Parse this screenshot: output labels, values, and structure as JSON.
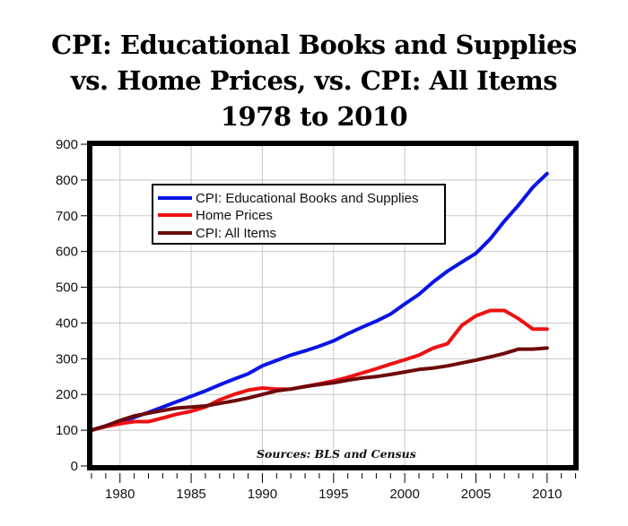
{
  "title": {
    "line1": "CPI: Educational Books and Supplies",
    "line2": "vs. Home Prices, vs. CPI: All Items",
    "line3": "1978 to 2010"
  },
  "source_note": "Sources: BLS and Census",
  "colors": {
    "edu_books": "#0a14e6",
    "home_prices": "#ee1111",
    "cpi_all": "#6e0a0a",
    "grid": "#c8c8c8",
    "frame": "#000000"
  },
  "chart_data": {
    "type": "line",
    "title": "CPI: Educational Books and Supplies vs. Home Prices, vs. CPI: All Items 1978 to 2010",
    "xlabel": "",
    "ylabel": "",
    "xlim": [
      1978,
      2012
    ],
    "ylim": [
      0,
      900
    ],
    "grid": true,
    "legend_position": "upper left (inset)",
    "x_ticks": [
      1980,
      1985,
      1990,
      1995,
      2000,
      2005,
      2010
    ],
    "y_ticks": [
      0,
      100,
      200,
      300,
      400,
      500,
      600,
      700,
      800,
      900
    ],
    "x": [
      1978,
      1979,
      1980,
      1981,
      1982,
      1983,
      1984,
      1985,
      1986,
      1987,
      1988,
      1989,
      1990,
      1991,
      1992,
      1993,
      1994,
      1995,
      1996,
      1997,
      1998,
      1999,
      2000,
      2001,
      2002,
      2003,
      2004,
      2005,
      2006,
      2007,
      2008,
      2009,
      2010
    ],
    "series": [
      {
        "name": "CPI: Educational Books and Supplies",
        "color": "#0a14e6",
        "values": [
          100,
          112,
          124,
          136,
          150,
          165,
          180,
          195,
          210,
          227,
          243,
          258,
          280,
          295,
          310,
          322,
          335,
          350,
          370,
          388,
          405,
          425,
          453,
          480,
          515,
          545,
          570,
          595,
          635,
          685,
          730,
          780,
          818
        ]
      },
      {
        "name": "Home Prices",
        "color": "#ee1111",
        "values": [
          100,
          110,
          118,
          124,
          124,
          134,
          145,
          153,
          165,
          185,
          200,
          212,
          218,
          215,
          215,
          222,
          230,
          238,
          248,
          260,
          272,
          285,
          297,
          310,
          330,
          342,
          393,
          420,
          435,
          435,
          412,
          383,
          383
        ]
      },
      {
        "name": "CPI: All Items",
        "color": "#6e0a0a",
        "values": [
          100,
          112,
          127,
          140,
          148,
          155,
          162,
          165,
          168,
          175,
          182,
          190,
          200,
          210,
          215,
          222,
          228,
          233,
          240,
          246,
          250,
          256,
          263,
          270,
          274,
          280,
          288,
          296,
          305,
          315,
          327,
          327,
          330
        ]
      }
    ]
  },
  "legend": {
    "items": [
      {
        "label": "CPI: Educational Books and Supplies",
        "color": "#0a14e6"
      },
      {
        "label": "Home Prices",
        "color": "#ee1111"
      },
      {
        "label": "CPI: All Items",
        "color": "#6e0a0a"
      }
    ]
  },
  "axes": {
    "y_labels": [
      "0",
      "100",
      "200",
      "300",
      "400",
      "500",
      "600",
      "700",
      "800",
      "900"
    ],
    "x_labels": [
      "1980",
      "1985",
      "1990",
      "1995",
      "2000",
      "2005",
      "2010"
    ]
  }
}
